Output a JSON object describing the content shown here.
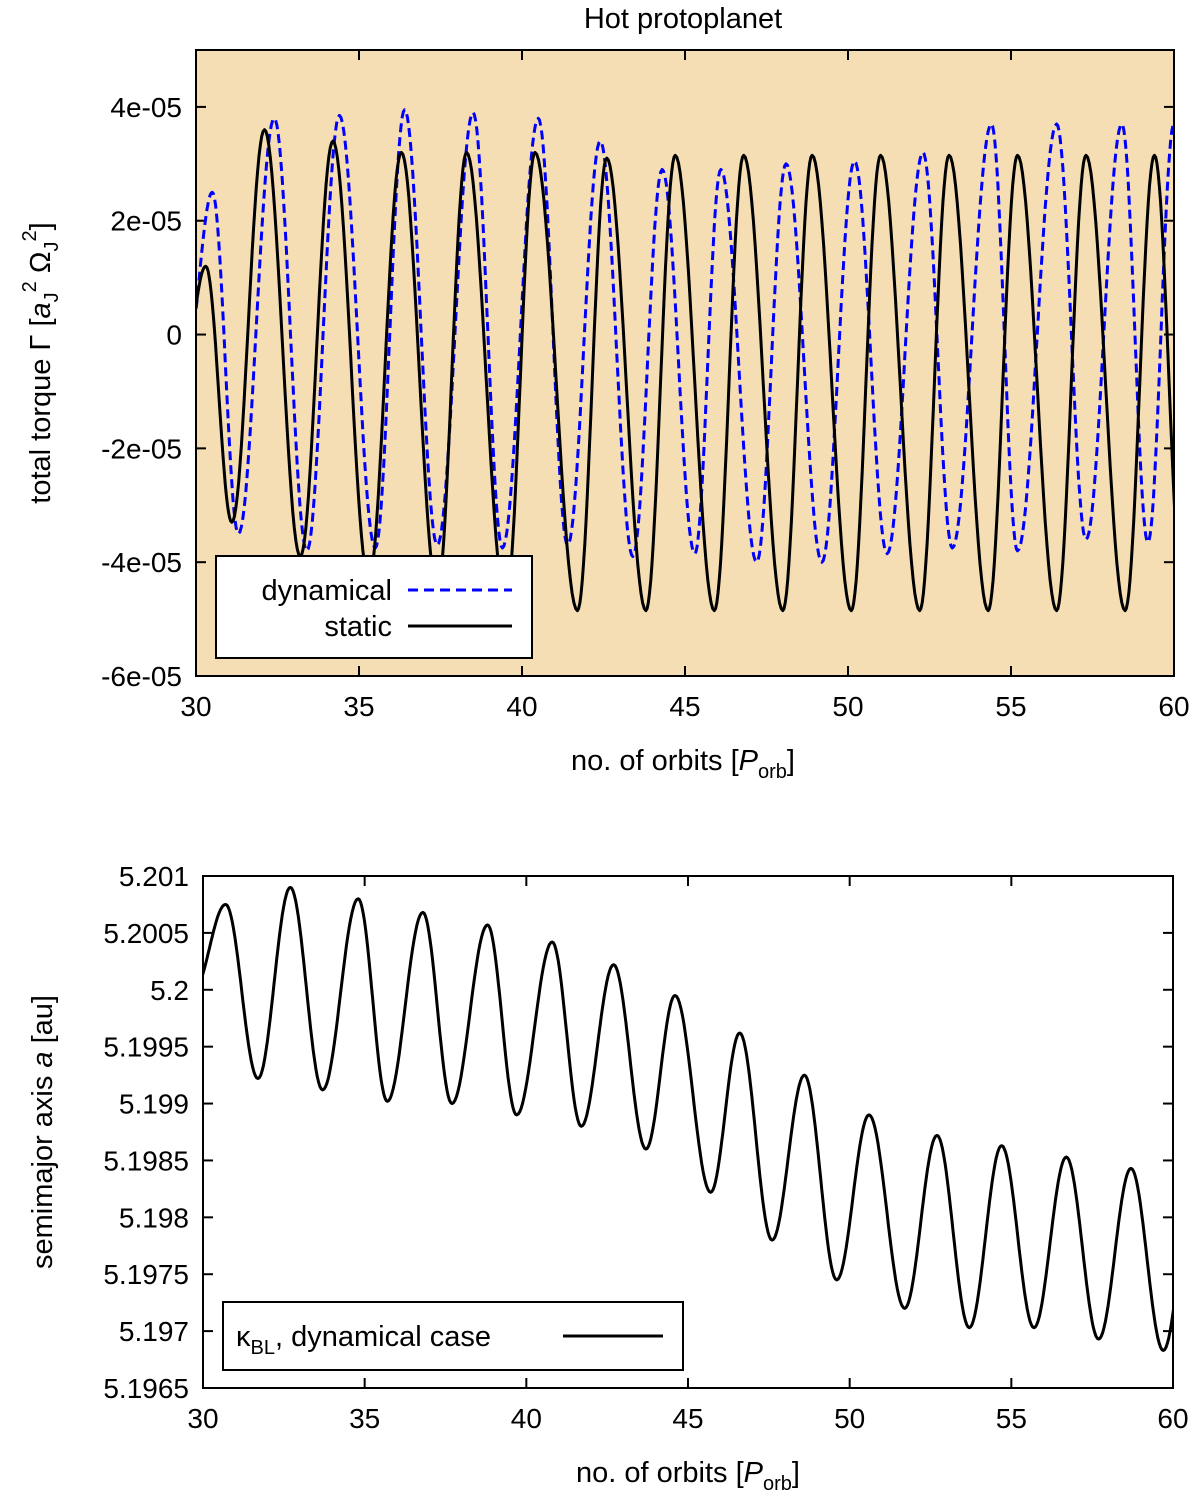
{
  "chart_data": [
    {
      "type": "line",
      "title": "Hot protoplanet",
      "xlabel": "no. of orbits [P_orb]",
      "ylabel": "total torque Γ [a_J^2 Ω_J^2]",
      "xlim": [
        30,
        60
      ],
      "ylim": [
        -6e-05,
        5e-05
      ],
      "xticks": [
        "30",
        "35",
        "40",
        "45",
        "50",
        "55",
        "60"
      ],
      "yticks": [
        "-6e-05",
        "-4e-05",
        "-2e-05",
        "0",
        "2e-05",
        "4e-05"
      ],
      "background": "#f5deb3",
      "legend": {
        "position": "bottom-left"
      },
      "series": [
        {
          "name": "dynamical",
          "color": "#0000ff",
          "style": "dashed",
          "peaks": [
            [
              30.5,
              2.5e-05
            ],
            [
              32.4,
              3.8e-05
            ],
            [
              34.4,
              3.85e-05
            ],
            [
              36.4,
              3.95e-05
            ],
            [
              38.5,
              3.9e-05
            ],
            [
              40.5,
              3.8e-05
            ],
            [
              42.4,
              3.4e-05
            ],
            [
              44.3,
              2.9e-05
            ],
            [
              46.1,
              2.9e-05
            ],
            [
              48.1,
              3e-05
            ],
            [
              50.2,
              3.05e-05
            ],
            [
              52.3,
              3.2e-05
            ],
            [
              54.4,
              3.7e-05
            ],
            [
              56.4,
              3.7e-05
            ],
            [
              58.4,
              3.7e-05
            ]
          ],
          "troughs": [
            [
              31.3,
              -3.5e-05
            ],
            [
              33.4,
              -3.8e-05
            ],
            [
              35.5,
              -3.75e-05
            ],
            [
              37.4,
              -3.7e-05
            ],
            [
              39.4,
              -3.75e-05
            ],
            [
              41.4,
              -3.7e-05
            ],
            [
              43.4,
              -3.9e-05
            ],
            [
              45.3,
              -3.85e-05
            ],
            [
              47.2,
              -4e-05
            ],
            [
              49.2,
              -4e-05
            ],
            [
              51.2,
              -3.85e-05
            ],
            [
              53.2,
              -3.75e-05
            ],
            [
              55.2,
              -3.8e-05
            ],
            [
              57.3,
              -3.6e-05
            ],
            [
              59.2,
              -3.65e-05
            ]
          ]
        },
        {
          "name": "static",
          "color": "#000000",
          "style": "solid",
          "peaks": [
            [
              30.3,
              1.2e-05
            ],
            [
              32.1,
              3.6e-05
            ],
            [
              34.2,
              3.4e-05
            ],
            [
              36.3,
              3.2e-05
            ],
            [
              38.3,
              3.2e-05
            ],
            [
              40.4,
              3.2e-05
            ],
            [
              42.6,
              3.1e-05
            ],
            [
              44.7,
              3.15e-05
            ],
            [
              46.8,
              3.15e-05
            ],
            [
              48.9,
              3.15e-05
            ],
            [
              51.0,
              3.15e-05
            ],
            [
              53.1,
              3.15e-05
            ],
            [
              55.2,
              3.15e-05
            ],
            [
              57.3,
              3.15e-05
            ],
            [
              59.4,
              3.15e-05
            ]
          ],
          "troughs": [
            [
              31.1,
              -3.3e-05
            ],
            [
              33.2,
              -3.9e-05
            ],
            [
              35.3,
              -4.3e-05
            ],
            [
              37.4,
              -4.5e-05
            ],
            [
              39.5,
              -4.7e-05
            ],
            [
              41.7,
              -4.85e-05
            ],
            [
              43.8,
              -4.85e-05
            ],
            [
              45.9,
              -4.85e-05
            ],
            [
              48.0,
              -4.85e-05
            ],
            [
              50.1,
              -4.85e-05
            ],
            [
              52.2,
              -4.85e-05
            ],
            [
              54.3,
              -4.85e-05
            ],
            [
              56.4,
              -4.85e-05
            ],
            [
              58.5,
              -4.85e-05
            ]
          ]
        }
      ]
    },
    {
      "type": "line",
      "title": "",
      "xlabel": "no. of orbits [P_orb]",
      "ylabel": "semimajor axis a [au]",
      "xlim": [
        30,
        60
      ],
      "ylim": [
        5.1965,
        5.201
      ],
      "xticks": [
        "30",
        "35",
        "40",
        "45",
        "50",
        "55",
        "60"
      ],
      "yticks": [
        "5.1965",
        "5.197",
        "5.1975",
        "5.198",
        "5.1985",
        "5.199",
        "5.1995",
        "5.2",
        "5.2005",
        "5.201"
      ],
      "background": "#ffffff",
      "legend": {
        "position": "bottom-left"
      },
      "series": [
        {
          "name": "κ_BL, dynamical case",
          "color": "#000000",
          "style": "solid",
          "peaks": [
            [
              30.7,
              5.20075
            ],
            [
              32.7,
              5.2009
            ],
            [
              34.8,
              5.2008
            ],
            [
              36.8,
              5.20068
            ],
            [
              38.8,
              5.20057
            ],
            [
              40.8,
              5.20042
            ],
            [
              42.7,
              5.20022
            ],
            [
              44.6,
              5.19995
            ],
            [
              46.6,
              5.19962
            ],
            [
              48.6,
              5.19925
            ],
            [
              50.6,
              5.1989
            ],
            [
              52.7,
              5.19872
            ],
            [
              54.7,
              5.19863
            ],
            [
              56.7,
              5.19853
            ],
            [
              58.7,
              5.19843
            ]
          ],
          "troughs": [
            [
              31.7,
              5.19922
            ],
            [
              33.7,
              5.19912
            ],
            [
              35.7,
              5.19902
            ],
            [
              37.7,
              5.199
            ],
            [
              39.7,
              5.1989
            ],
            [
              41.7,
              5.1988
            ],
            [
              43.7,
              5.1986
            ],
            [
              45.7,
              5.19822
            ],
            [
              47.6,
              5.1978
            ],
            [
              49.6,
              5.19745
            ],
            [
              51.7,
              5.1972
            ],
            [
              53.7,
              5.19703
            ],
            [
              55.7,
              5.19703
            ],
            [
              57.7,
              5.19693
            ],
            [
              59.7,
              5.19683
            ]
          ]
        }
      ]
    }
  ],
  "top": {
    "title": "Hot protoplanet",
    "xticks": [
      "30",
      "35",
      "40",
      "45",
      "50",
      "55",
      "60"
    ],
    "yticks": [
      "-6e-05",
      "-4e-05",
      "-2e-05",
      "0",
      "2e-05",
      "4e-05"
    ],
    "xlabel_main": "no. of orbits [",
    "xlabel_italic": "P",
    "xlabel_sub": "orb",
    "xlabel_end": "]",
    "ylabel_main": "total torque Γ [",
    "ylabel_a": "a",
    "ylabel_J1": "J",
    "ylabel_sq1": "2",
    "ylabel_omega": " Ω",
    "ylabel_J2": "J",
    "ylabel_sq2": "2",
    "ylabel_end": "]",
    "legend_dynamical": "dynamical",
    "legend_static": "static"
  },
  "bottom": {
    "xticks": [
      "30",
      "35",
      "40",
      "45",
      "50",
      "55",
      "60"
    ],
    "yticks": [
      "5.1965",
      "5.197",
      "5.1975",
      "5.198",
      "5.1985",
      "5.199",
      "5.1995",
      "5.2",
      "5.2005",
      "5.201"
    ],
    "xlabel_main": "no. of orbits [",
    "xlabel_italic": "P",
    "xlabel_sub": "orb",
    "xlabel_end": "]",
    "ylabel_main": "semimajor axis ",
    "ylabel_italic": "a",
    "ylabel_end": " [au]",
    "legend_kappa": "κ",
    "legend_sub": "BL",
    "legend_rest": ", dynamical case"
  }
}
